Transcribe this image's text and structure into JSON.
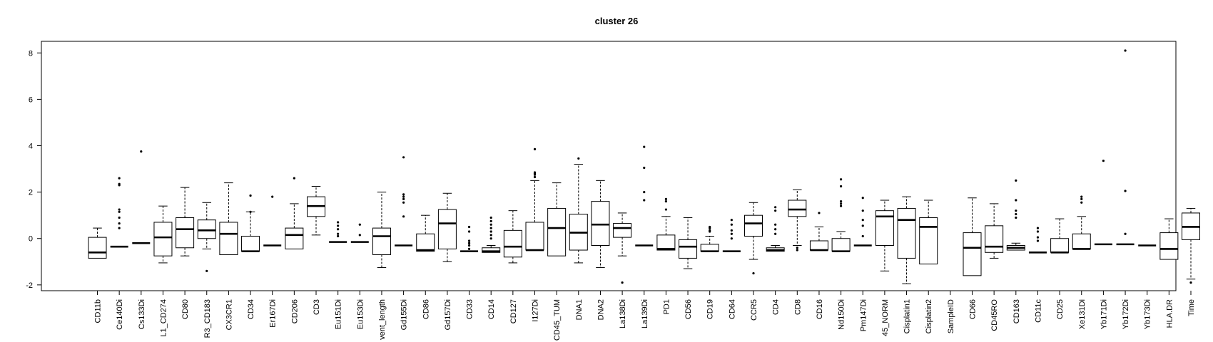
{
  "chart_data": {
    "type": "boxplot",
    "title": "cluster 26",
    "xlabel": "",
    "ylabel": "",
    "ylim": [
      -2.25,
      8.5
    ],
    "yticks": [
      -2,
      0,
      2,
      4,
      6,
      8
    ],
    "grid": false,
    "legend": "none",
    "colors": {
      "box": "#ffffff",
      "stroke": "#000000",
      "median": "#000000"
    },
    "categories": [
      "CD11b",
      "Ce140Di",
      "Cs133Di",
      "L1_CD274",
      "CD80",
      "R3_CD183",
      "CX3CR1",
      "CD34",
      "Er167Di",
      "CD206",
      "CD3",
      "Eu151Di",
      "Eu153Di",
      "vent_length",
      "Gd155Di",
      "CD86",
      "Gd157Di",
      "CD33",
      "CD14",
      "CD127",
      "I127Di",
      "CD45_TUM",
      "DNA1",
      "DNA2",
      "La138Di",
      "La139Di",
      "PD1",
      "CD56",
      "CD19",
      "CD64",
      "CCR5",
      "CD4",
      "CD8",
      "CD16",
      "Nd150Di",
      "Pm147Di",
      "45_NORM",
      "Cisplatin1",
      "Cisplatin2",
      "SampleID",
      "CD66",
      "CD45RO",
      "CD163",
      "CD11c",
      "CD25",
      "Xe131Di",
      "Yb171Di",
      "Yb172Di",
      "Yb173Di",
      "HLA.DR",
      "Time"
    ],
    "boxes": [
      {
        "whislo": -0.85,
        "q1": -0.85,
        "med": -0.6,
        "q3": 0.05,
        "whishi": 0.45,
        "fliers": []
      },
      {
        "whislo": -0.35,
        "q1": -0.35,
        "med": -0.35,
        "q3": -0.35,
        "whishi": -0.35,
        "fliers": [
          2.6,
          2.35,
          2.3,
          1.25,
          1.15,
          0.9,
          0.65,
          0.45
        ]
      },
      {
        "whislo": -0.2,
        "q1": -0.2,
        "med": -0.2,
        "q3": -0.2,
        "whishi": -0.2,
        "fliers": [
          3.75
        ]
      },
      {
        "whislo": -1.05,
        "q1": -0.75,
        "med": 0.05,
        "q3": 0.7,
        "whishi": 1.4,
        "fliers": []
      },
      {
        "whislo": -0.75,
        "q1": -0.4,
        "med": 0.4,
        "q3": 0.9,
        "whishi": 2.2,
        "fliers": []
      },
      {
        "whislo": -0.45,
        "q1": 0.0,
        "med": 0.35,
        "q3": 0.8,
        "whishi": 1.55,
        "fliers": [
          -1.4
        ]
      },
      {
        "whislo": -0.7,
        "q1": -0.7,
        "med": 0.2,
        "q3": 0.7,
        "whishi": 2.4,
        "fliers": []
      },
      {
        "whislo": -0.55,
        "q1": -0.55,
        "med": -0.55,
        "q3": 0.1,
        "whishi": 1.15,
        "fliers": [
          1.85,
          1.15
        ]
      },
      {
        "whislo": -0.3,
        "q1": -0.3,
        "med": -0.3,
        "q3": -0.3,
        "whishi": -0.3,
        "fliers": [
          1.8
        ]
      },
      {
        "whislo": -0.45,
        "q1": -0.45,
        "med": 0.15,
        "q3": 0.45,
        "whishi": 1.5,
        "fliers": [
          2.6
        ]
      },
      {
        "whislo": 0.15,
        "q1": 0.95,
        "med": 1.4,
        "q3": 1.8,
        "whishi": 2.25,
        "fliers": []
      },
      {
        "whislo": -0.15,
        "q1": -0.15,
        "med": -0.15,
        "q3": -0.15,
        "whishi": -0.15,
        "fliers": [
          0.7,
          0.55,
          0.4,
          0.2,
          0.1
        ]
      },
      {
        "whislo": -0.15,
        "q1": -0.15,
        "med": -0.15,
        "q3": -0.15,
        "whishi": -0.15,
        "fliers": [
          0.6,
          0.15
        ]
      },
      {
        "whislo": -1.25,
        "q1": -0.7,
        "med": 0.1,
        "q3": 0.45,
        "whishi": 2.0,
        "fliers": []
      },
      {
        "whislo": -0.3,
        "q1": -0.3,
        "med": -0.3,
        "q3": -0.3,
        "whishi": -0.3,
        "fliers": [
          3.5,
          1.9,
          1.8,
          1.7,
          1.55,
          0.95
        ]
      },
      {
        "whislo": -0.55,
        "q1": -0.55,
        "med": -0.5,
        "q3": 0.2,
        "whishi": 1.0,
        "fliers": []
      },
      {
        "whislo": -1.0,
        "q1": -0.45,
        "med": 0.65,
        "q3": 1.25,
        "whishi": 1.95,
        "fliers": []
      },
      {
        "whislo": -0.55,
        "q1": -0.55,
        "med": -0.55,
        "q3": -0.55,
        "whishi": -0.55,
        "fliers": [
          0.5,
          0.3,
          -0.1,
          -0.2,
          -0.3,
          -0.45
        ]
      },
      {
        "whislo": -0.6,
        "q1": -0.6,
        "med": -0.55,
        "q3": -0.4,
        "whishi": -0.3,
        "fliers": [
          0.9,
          0.75,
          0.6,
          0.45,
          0.3,
          0.15,
          0.0
        ]
      },
      {
        "whislo": -1.05,
        "q1": -0.8,
        "med": -0.35,
        "q3": 0.35,
        "whishi": 1.2,
        "fliers": []
      },
      {
        "whislo": -0.5,
        "q1": -0.5,
        "med": -0.5,
        "q3": 0.7,
        "whishi": 2.5,
        "fliers": [
          3.85,
          2.85,
          2.8,
          2.75,
          2.65
        ]
      },
      {
        "whislo": -0.75,
        "q1": -0.75,
        "med": 0.45,
        "q3": 1.3,
        "whishi": 2.4,
        "fliers": []
      },
      {
        "whislo": -1.05,
        "q1": -0.5,
        "med": 0.25,
        "q3": 1.05,
        "whishi": 3.2,
        "fliers": [
          3.45
        ]
      },
      {
        "whislo": -1.25,
        "q1": -0.3,
        "med": 0.6,
        "q3": 1.6,
        "whishi": 2.5,
        "fliers": []
      },
      {
        "whislo": -0.75,
        "q1": 0.05,
        "med": 0.45,
        "q3": 0.65,
        "whishi": 1.1,
        "fliers": [
          -1.9
        ]
      },
      {
        "whislo": -0.3,
        "q1": -0.3,
        "med": -0.3,
        "q3": -0.3,
        "whishi": -0.3,
        "fliers": [
          3.95,
          3.05,
          2.0,
          1.65
        ]
      },
      {
        "whislo": -0.5,
        "q1": -0.5,
        "med": -0.45,
        "q3": 0.15,
        "whishi": 0.95,
        "fliers": [
          1.7,
          1.6,
          1.25
        ]
      },
      {
        "whislo": -1.3,
        "q1": -0.85,
        "med": -0.35,
        "q3": -0.05,
        "whishi": 0.9,
        "fliers": []
      },
      {
        "whislo": -0.55,
        "q1": -0.55,
        "med": -0.55,
        "q3": -0.25,
        "whishi": 0.1,
        "fliers": [
          0.5,
          0.45,
          0.35,
          0.3
        ]
      },
      {
        "whislo": -0.55,
        "q1": -0.55,
        "med": -0.55,
        "q3": -0.55,
        "whishi": -0.55,
        "fliers": [
          0.8,
          0.6,
          0.35,
          0.2,
          0.0
        ]
      },
      {
        "whislo": -0.9,
        "q1": 0.1,
        "med": 0.65,
        "q3": 1.0,
        "whishi": 1.55,
        "fliers": [
          -1.5
        ]
      },
      {
        "whislo": -0.55,
        "q1": -0.55,
        "med": -0.5,
        "q3": -0.4,
        "whishi": -0.3,
        "fliers": [
          1.35,
          1.2,
          0.6,
          0.4,
          0.2
        ]
      },
      {
        "whislo": -0.3,
        "q1": 0.95,
        "med": 1.25,
        "q3": 1.65,
        "whishi": 2.1,
        "fliers": [
          -0.4,
          -0.5
        ]
      },
      {
        "whislo": -0.5,
        "q1": -0.5,
        "med": -0.5,
        "q3": -0.1,
        "whishi": 0.5,
        "fliers": [
          1.1
        ]
      },
      {
        "whislo": -0.55,
        "q1": -0.55,
        "med": -0.55,
        "q3": 0.0,
        "whishi": 0.3,
        "fliers": [
          2.55,
          2.25,
          1.6,
          1.5,
          1.4
        ]
      },
      {
        "whislo": -0.3,
        "q1": -0.3,
        "med": -0.3,
        "q3": -0.3,
        "whishi": -0.3,
        "fliers": [
          1.75,
          1.2,
          0.8,
          0.55,
          0.1
        ]
      },
      {
        "whislo": -1.4,
        "q1": -0.3,
        "med": 0.95,
        "q3": 1.2,
        "whishi": 1.65,
        "fliers": []
      },
      {
        "whislo": -1.95,
        "q1": -0.85,
        "med": 0.8,
        "q3": 1.3,
        "whishi": 1.8,
        "fliers": []
      },
      {
        "whislo": -1.1,
        "q1": -1.1,
        "med": 0.5,
        "q3": 0.9,
        "whishi": 1.65,
        "fliers": []
      },
      null,
      {
        "whislo": -1.6,
        "q1": -1.6,
        "med": -0.4,
        "q3": 0.25,
        "whishi": 1.75,
        "fliers": []
      },
      {
        "whislo": -0.85,
        "q1": -0.6,
        "med": -0.35,
        "q3": 0.55,
        "whishi": 1.5,
        "fliers": []
      },
      {
        "whislo": -0.5,
        "q1": -0.5,
        "med": -0.4,
        "q3": -0.3,
        "whishi": -0.2,
        "fliers": [
          2.5,
          1.65,
          1.2,
          1.05,
          0.9
        ]
      },
      {
        "whislo": -0.6,
        "q1": -0.6,
        "med": -0.6,
        "q3": -0.6,
        "whishi": -0.6,
        "fliers": [
          0.45,
          0.3,
          0.05,
          -0.1
        ]
      },
      {
        "whislo": -0.6,
        "q1": -0.6,
        "med": -0.6,
        "q3": 0.0,
        "whishi": 0.85,
        "fliers": []
      },
      {
        "whislo": -0.45,
        "q1": -0.45,
        "med": -0.45,
        "q3": 0.2,
        "whishi": 0.95,
        "fliers": [
          1.8,
          1.7,
          1.55
        ]
      },
      {
        "whislo": -0.25,
        "q1": -0.25,
        "med": -0.25,
        "q3": -0.25,
        "whishi": -0.25,
        "fliers": [
          3.35
        ]
      },
      {
        "whislo": -0.25,
        "q1": -0.25,
        "med": -0.25,
        "q3": -0.25,
        "whishi": -0.25,
        "fliers": [
          8.1,
          2.05,
          0.2
        ]
      },
      {
        "whislo": -0.3,
        "q1": -0.3,
        "med": -0.3,
        "q3": -0.3,
        "whishi": -0.3,
        "fliers": []
      },
      {
        "whislo": -0.9,
        "q1": -0.9,
        "med": -0.45,
        "q3": 0.25,
        "whishi": 0.85,
        "fliers": []
      },
      {
        "whislo": -1.75,
        "q1": -0.05,
        "med": 0.5,
        "q3": 1.1,
        "whishi": 1.3,
        "fliers": [
          -1.9
        ]
      }
    ]
  }
}
